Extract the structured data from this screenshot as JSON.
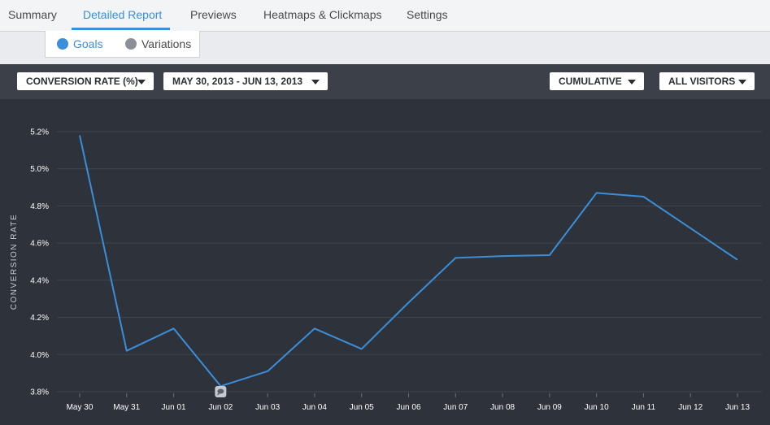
{
  "nav": {
    "tabs": [
      {
        "label": "Summary"
      },
      {
        "label": "Detailed Report"
      },
      {
        "label": "Previews"
      },
      {
        "label": "Heatmaps & Clickmaps"
      },
      {
        "label": "Settings"
      }
    ],
    "active_tab": "Detailed Report"
  },
  "subtabs": [
    {
      "label": "Goals",
      "color": "#3b8ed8"
    },
    {
      "label": "Variations",
      "color": "#8b9097"
    }
  ],
  "toolbar": {
    "metric_label": "CONVERSION RATE (%)",
    "date_range_label": "MAY 30, 2013 - JUN 13, 2013",
    "mode_label": "CUMULATIVE",
    "segment_label": "ALL VISITORS"
  },
  "chart_data": {
    "type": "line",
    "ylabel": "CONVERSION RATE",
    "xlabel": "",
    "categories": [
      "May 30",
      "May 31",
      "Jun 01",
      "Jun 02",
      "Jun 03",
      "Jun 04",
      "Jun 05",
      "Jun 06",
      "Jun 07",
      "Jun 08",
      "Jun 09",
      "Jun 10",
      "Jun 11",
      "Jun 12",
      "Jun 13"
    ],
    "series": [
      {
        "color": "#3b8ed8",
        "values": [
          5.18,
          4.02,
          4.14,
          3.83,
          3.91,
          4.14,
          4.03,
          4.28,
          4.52,
          4.53,
          4.535,
          4.87,
          4.85,
          4.68,
          4.51
        ]
      }
    ],
    "ylim": [
      3.8,
      5.2
    ],
    "yticks": [
      3.8,
      4.0,
      4.2,
      4.4,
      4.6,
      4.8,
      5.0,
      5.2
    ],
    "ytick_labels": [
      "3.8%",
      "4.0%",
      "4.2%",
      "4.4%",
      "4.6%",
      "4.8%",
      "5.0%",
      "5.2%"
    ],
    "grid": true,
    "annotation": {
      "category": "Jun 02",
      "icon": "comment-icon"
    }
  }
}
